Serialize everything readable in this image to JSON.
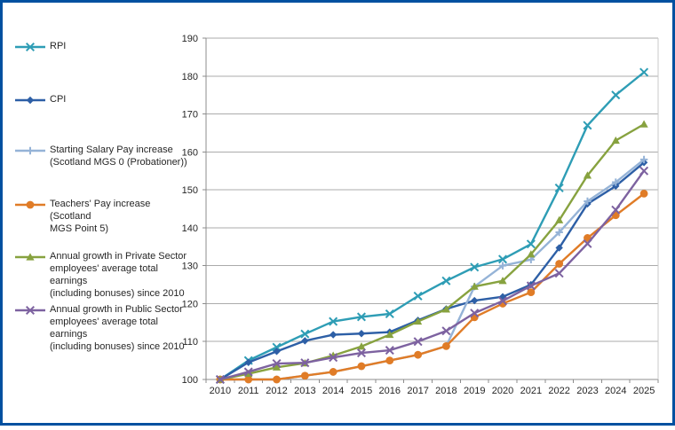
{
  "page": {
    "background_color": "#FFFFFF",
    "frame_border_color": "#0050A0"
  },
  "legend": {
    "position": "left",
    "items": [
      {
        "id": "rpi",
        "marker": "x",
        "color": "#2E9DB5",
        "label_lines": [
          "RPI"
        ]
      },
      {
        "id": "cpi",
        "marker": "diamond",
        "color": "#2D5FA6",
        "label_lines": [
          "CPI"
        ]
      },
      {
        "id": "starting-salary",
        "marker": "plus",
        "color": "#95B3D7",
        "label_lines": [
          "Starting Salary Pay increase",
          "(Scotland MGS 0 (Probationer))"
        ]
      },
      {
        "id": "teachers-pay",
        "marker": "circle",
        "color": "#E07C27",
        "label_lines": [
          "Teachers' Pay increase (Scotland",
          "MGS Point 5)"
        ]
      },
      {
        "id": "private-sector",
        "marker": "triangle",
        "color": "#87A23F",
        "label_lines": [
          "Annual growth in Private Sector",
          "employees' average total earnings",
          "(including bonuses) since 2010"
        ]
      },
      {
        "id": "public-sector",
        "marker": "x",
        "color": "#7D62A0",
        "label_lines": [
          "Annual growth in Public Sector",
          "employees' average total earnings",
          "(including bonuses) since 2010"
        ]
      }
    ]
  },
  "chart_data": {
    "type": "line",
    "title": "",
    "xlabel": "",
    "ylabel": "",
    "index_base": "2010 = 100",
    "grid": true,
    "legend_position": "left",
    "ylim": [
      100,
      190
    ],
    "ytick_step": 10,
    "yticklabels": [
      "100",
      "110",
      "120",
      "130",
      "140",
      "150",
      "160",
      "170",
      "180",
      "190"
    ],
    "categories": [
      "2010",
      "2011",
      "2012",
      "2013",
      "2014",
      "2015",
      "2016",
      "2017",
      "2018",
      "2019",
      "2020",
      "2021",
      "2022",
      "2023",
      "2024",
      "2025"
    ],
    "series": [
      {
        "name": "RPI",
        "marker": "x",
        "color": "#2E9DB5",
        "values": [
          100,
          105,
          108.5,
          112,
          115.3,
          116.5,
          117.3,
          122,
          126,
          129.6,
          131.7,
          135.7,
          150.5,
          167,
          175,
          181
        ]
      },
      {
        "name": "CPI",
        "marker": "diamond",
        "color": "#2D5FA6",
        "values": [
          100,
          104.5,
          107.4,
          110.2,
          111.8,
          112.1,
          112.5,
          115.6,
          118.6,
          120.8,
          121.8,
          125,
          134.7,
          146.3,
          151,
          157.2
        ]
      },
      {
        "name": "Starting Salary Pay increase (Scotland MGS 0 (Probationer))",
        "marker": "plus",
        "color": "#95B3D7",
        "values": [
          100,
          100,
          100,
          101,
          102,
          103.5,
          105,
          106.5,
          108.8,
          124.5,
          130,
          131.6,
          138.8,
          147,
          152,
          158
        ]
      },
      {
        "name": "Teachers' Pay increase (Scotland MGS Point 5)",
        "marker": "circle",
        "color": "#E07C27",
        "values": [
          100,
          100,
          100,
          101,
          102,
          103.5,
          105,
          106.5,
          108.8,
          116.4,
          120,
          123,
          130.5,
          137.3,
          143.3,
          149
        ]
      },
      {
        "name": "Annual growth in Private Sector employees' average total earnings (including bonuses) since 2010",
        "marker": "triangle",
        "color": "#87A23F",
        "values": [
          100,
          101.5,
          103.2,
          104.3,
          106.3,
          108.7,
          111.8,
          115.3,
          118.5,
          124.5,
          126,
          133,
          142,
          153.8,
          163,
          167.3
        ]
      },
      {
        "name": "Annual growth in Public Sector employees' average total earnings (including bonuses) since 2010",
        "marker": "x",
        "color": "#7D62A0",
        "values": [
          100,
          102,
          104.2,
          104.4,
          105.8,
          107,
          107.7,
          110,
          112.8,
          117.5,
          120.7,
          124.7,
          128,
          135.8,
          144.7,
          155
        ]
      }
    ]
  }
}
